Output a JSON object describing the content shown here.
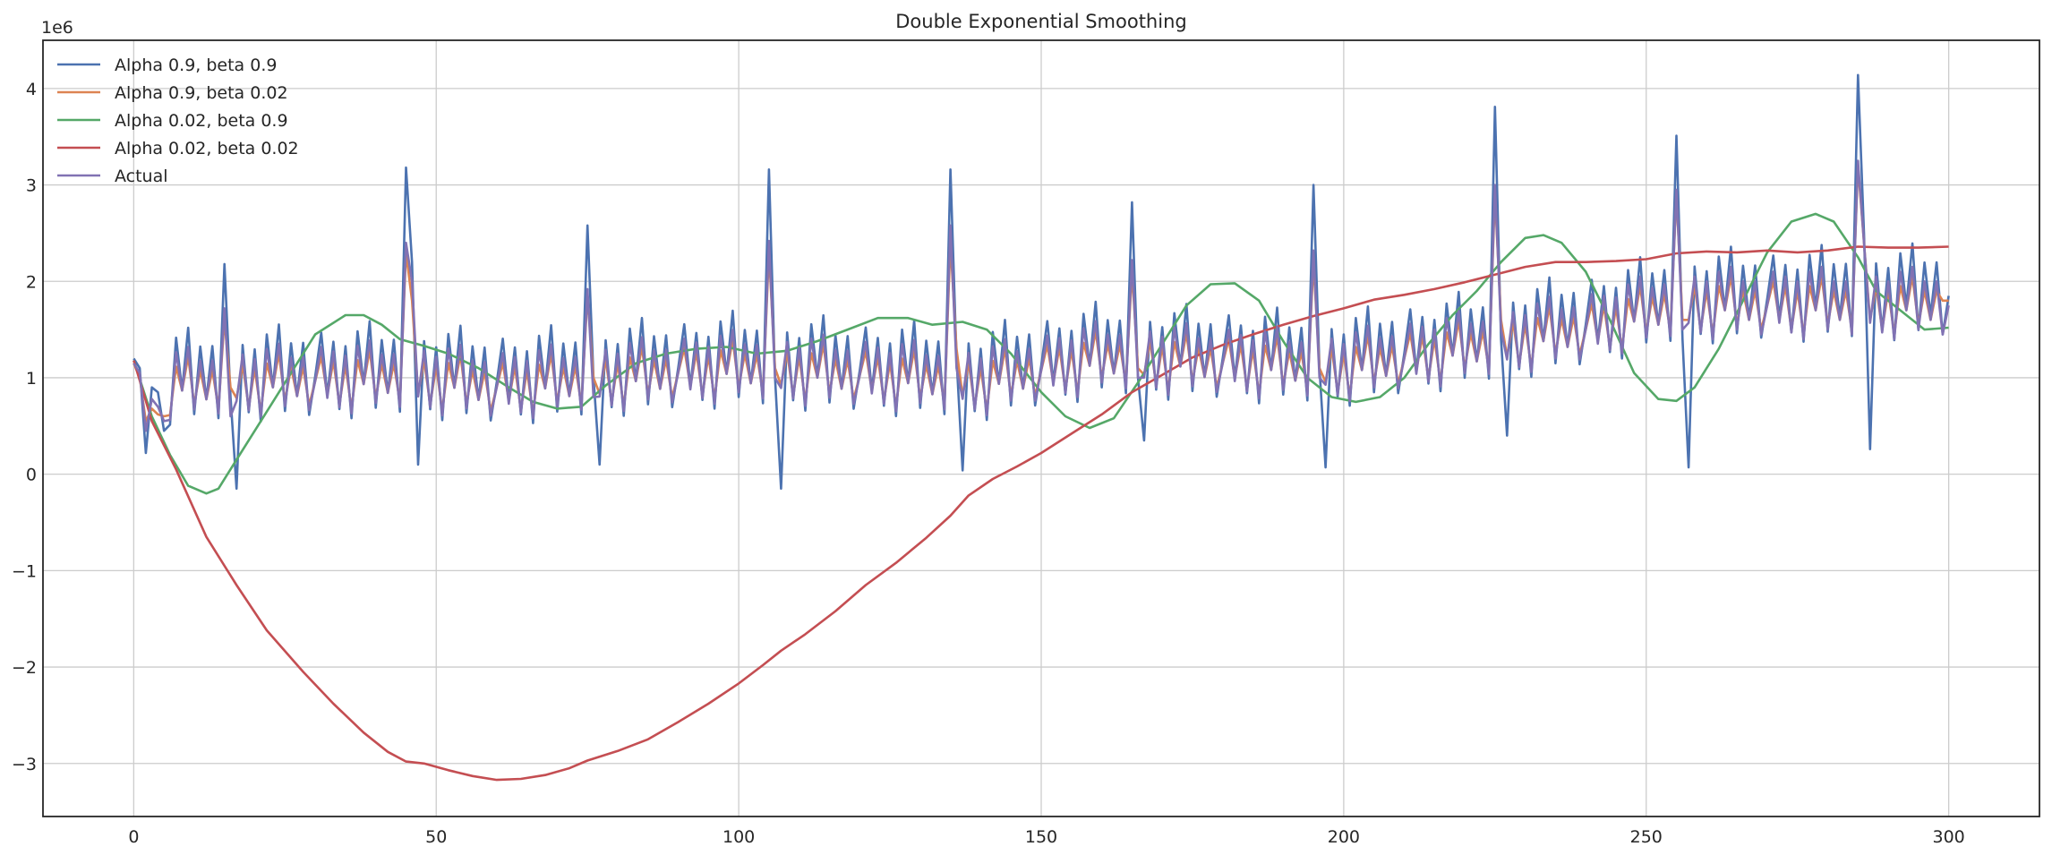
{
  "chart_data": {
    "type": "line",
    "title": "Double Exponential Smoothing",
    "offset_label": "1e6",
    "xlabel": "",
    "ylabel": "",
    "xlim": [
      -15,
      315
    ],
    "ylim": [
      -3550000,
      4500000
    ],
    "xticks": [
      0,
      50,
      100,
      150,
      200,
      250,
      300
    ],
    "xtick_labels": [
      "0",
      "50",
      "100",
      "150",
      "200",
      "250",
      "300"
    ],
    "yticks": [
      -3000000,
      -2000000,
      -1000000,
      0,
      1000000,
      2000000,
      3000000,
      4000000
    ],
    "ytick_labels": [
      "−3",
      "−2",
      "−1",
      "0",
      "1",
      "2",
      "3",
      "4"
    ],
    "grid": true,
    "legend_position": "upper-left",
    "pattern_units": "1e6",
    "series": [
      {
        "name": "Alpha 0.9, beta 0.9",
        "color": "#4c72b0",
        "pattern": [
          0.95,
          1.4,
          0.75,
          1.3,
          0.6,
          1.25,
          0.5,
          1.4,
          0.85,
          1.5,
          0.6,
          1.3,
          0.75,
          1.3,
          0.55
        ],
        "spikes": {
          "15": 2.18,
          "16": 0.8,
          "17": -0.15,
          "45": 3.18,
          "46": 2.2,
          "47": 0.1,
          "75": 2.58,
          "76": 1.0,
          "77": 0.1,
          "105": 3.16,
          "106": 1.0,
          "107": -0.15,
          "135": 3.16,
          "136": 1.2,
          "137": 0.04,
          "165": 2.82,
          "166": 1.0,
          "167": 0.35,
          "195": 3.0,
          "196": 1.1,
          "197": 0.07,
          "225": 3.81,
          "226": 1.4,
          "227": 0.4,
          "255": 3.51,
          "256": 1.4,
          "257": 0.07,
          "285": 4.14,
          "286": 2.5,
          "287": 0.26
        },
        "trend": [
          [
            0,
            0.0
          ],
          [
            45,
            0.1
          ],
          [
            60,
            0.0
          ],
          [
            100,
            0.2
          ],
          [
            140,
            0.05
          ],
          [
            160,
            0.3
          ],
          [
            200,
            0.2
          ],
          [
            240,
            0.6
          ],
          [
            255,
            0.85
          ],
          [
            300,
            0.9
          ]
        ],
        "start": [
          1.2,
          1.1,
          0.22,
          0.9,
          0.85,
          0.45
        ]
      },
      {
        "name": "Alpha 0.9, beta 0.02",
        "color": "#dd8452",
        "pattern": [
          0.9,
          1.15,
          0.75,
          1.1,
          0.65,
          1.05,
          0.6,
          1.1,
          0.85,
          1.2,
          0.7,
          1.05,
          0.75,
          1.05,
          0.65
        ],
        "spikes": {
          "15": 1.6,
          "16": 0.9,
          "45": 2.3,
          "46": 1.8,
          "75": 1.85,
          "76": 1.0,
          "105": 2.3,
          "106": 1.1,
          "135": 2.4,
          "136": 1.3,
          "165": 2.1,
          "166": 1.1,
          "195": 2.2,
          "196": 1.1,
          "225": 2.9,
          "226": 1.6,
          "255": 2.9,
          "256": 1.6,
          "285": 3.2,
          "286": 2.4
        },
        "trend": [
          [
            0,
            0.0
          ],
          [
            45,
            0.1
          ],
          [
            60,
            0.0
          ],
          [
            100,
            0.2
          ],
          [
            140,
            0.05
          ],
          [
            160,
            0.3
          ],
          [
            200,
            0.2
          ],
          [
            240,
            0.6
          ],
          [
            255,
            0.85
          ],
          [
            300,
            0.85
          ]
        ],
        "start": [
          1.15,
          1.0,
          0.55,
          0.68,
          0.62,
          0.6
        ],
        "end": {
          "299": 1.8,
          "300": 1.8
        }
      },
      {
        "name": "Alpha 0.02, beta 0.9",
        "color": "#55a868",
        "points": [
          [
            0,
            1.18
          ],
          [
            3,
            0.6
          ],
          [
            6,
            0.2
          ],
          [
            9,
            -0.12
          ],
          [
            12,
            -0.2
          ],
          [
            14,
            -0.15
          ],
          [
            17,
            0.15
          ],
          [
            21,
            0.55
          ],
          [
            26,
            1.05
          ],
          [
            30,
            1.45
          ],
          [
            35,
            1.65
          ],
          [
            38,
            1.65
          ],
          [
            41,
            1.55
          ],
          [
            44,
            1.4
          ],
          [
            48,
            1.33
          ],
          [
            52,
            1.25
          ],
          [
            57,
            1.1
          ],
          [
            62,
            0.9
          ],
          [
            66,
            0.75
          ],
          [
            70,
            0.68
          ],
          [
            74,
            0.7
          ],
          [
            78,
            0.92
          ],
          [
            83,
            1.15
          ],
          [
            88,
            1.25
          ],
          [
            93,
            1.3
          ],
          [
            98,
            1.32
          ],
          [
            103,
            1.25
          ],
          [
            108,
            1.28
          ],
          [
            113,
            1.38
          ],
          [
            118,
            1.5
          ],
          [
            123,
            1.62
          ],
          [
            128,
            1.62
          ],
          [
            132,
            1.55
          ],
          [
            137,
            1.58
          ],
          [
            141,
            1.5
          ],
          [
            145,
            1.25
          ],
          [
            150,
            0.85
          ],
          [
            154,
            0.6
          ],
          [
            158,
            0.48
          ],
          [
            162,
            0.58
          ],
          [
            166,
            0.95
          ],
          [
            170,
            1.35
          ],
          [
            174,
            1.75
          ],
          [
            178,
            1.97
          ],
          [
            182,
            1.98
          ],
          [
            186,
            1.8
          ],
          [
            190,
            1.38
          ],
          [
            194,
            1.0
          ],
          [
            198,
            0.8
          ],
          [
            202,
            0.75
          ],
          [
            206,
            0.8
          ],
          [
            210,
            1.0
          ],
          [
            214,
            1.35
          ],
          [
            218,
            1.65
          ],
          [
            222,
            1.9
          ],
          [
            226,
            2.2
          ],
          [
            230,
            2.45
          ],
          [
            233,
            2.48
          ],
          [
            236,
            2.4
          ],
          [
            240,
            2.1
          ],
          [
            244,
            1.6
          ],
          [
            248,
            1.05
          ],
          [
            252,
            0.78
          ],
          [
            255,
            0.76
          ],
          [
            258,
            0.9
          ],
          [
            262,
            1.3
          ],
          [
            266,
            1.8
          ],
          [
            270,
            2.3
          ],
          [
            274,
            2.62
          ],
          [
            278,
            2.7
          ],
          [
            281,
            2.62
          ],
          [
            285,
            2.25
          ],
          [
            288,
            1.9
          ],
          [
            292,
            1.7
          ],
          [
            296,
            1.5
          ],
          [
            300,
            1.52
          ]
        ]
      },
      {
        "name": "Alpha 0.02, beta 0.02",
        "color": "#c44e52",
        "points": [
          [
            0,
            1.18
          ],
          [
            3,
            0.55
          ],
          [
            7,
            0.05
          ],
          [
            12,
            -0.65
          ],
          [
            17,
            -1.15
          ],
          [
            22,
            -1.62
          ],
          [
            28,
            -2.05
          ],
          [
            33,
            -2.38
          ],
          [
            38,
            -2.68
          ],
          [
            42,
            -2.88
          ],
          [
            45,
            -2.98
          ],
          [
            48,
            -3.0
          ],
          [
            52,
            -3.07
          ],
          [
            56,
            -3.13
          ],
          [
            60,
            -3.17
          ],
          [
            64,
            -3.16
          ],
          [
            68,
            -3.12
          ],
          [
            72,
            -3.05
          ],
          [
            75,
            -2.97
          ],
          [
            80,
            -2.87
          ],
          [
            85,
            -2.75
          ],
          [
            90,
            -2.57
          ],
          [
            95,
            -2.38
          ],
          [
            100,
            -2.17
          ],
          [
            104,
            -1.98
          ],
          [
            107,
            -1.83
          ],
          [
            111,
            -1.66
          ],
          [
            116,
            -1.42
          ],
          [
            121,
            -1.15
          ],
          [
            126,
            -0.92
          ],
          [
            131,
            -0.66
          ],
          [
            135,
            -0.43
          ],
          [
            138,
            -0.22
          ],
          [
            142,
            -0.05
          ],
          [
            146,
            0.08
          ],
          [
            150,
            0.22
          ],
          [
            155,
            0.42
          ],
          [
            160,
            0.62
          ],
          [
            165,
            0.85
          ],
          [
            170,
            1.03
          ],
          [
            175,
            1.21
          ],
          [
            180,
            1.34
          ],
          [
            185,
            1.45
          ],
          [
            190,
            1.55
          ],
          [
            195,
            1.64
          ],
          [
            200,
            1.72
          ],
          [
            205,
            1.81
          ],
          [
            210,
            1.86
          ],
          [
            215,
            1.92
          ],
          [
            220,
            1.99
          ],
          [
            225,
            2.07
          ],
          [
            230,
            2.15
          ],
          [
            235,
            2.2
          ],
          [
            240,
            2.2
          ],
          [
            245,
            2.21
          ],
          [
            250,
            2.23
          ],
          [
            255,
            2.29
          ],
          [
            260,
            2.31
          ],
          [
            265,
            2.3
          ],
          [
            270,
            2.32
          ],
          [
            275,
            2.3
          ],
          [
            280,
            2.32
          ],
          [
            285,
            2.36
          ],
          [
            290,
            2.35
          ],
          [
            295,
            2.35
          ],
          [
            300,
            2.36
          ]
        ]
      },
      {
        "name": "Actual",
        "color": "#8172b3",
        "pattern": [
          0.9,
          1.25,
          0.72,
          1.2,
          0.62,
          1.15,
          0.55,
          1.25,
          0.85,
          1.3,
          0.65,
          1.15,
          0.75,
          1.15,
          0.6
        ],
        "spikes": {
          "15": 1.72,
          "16": 0.6,
          "45": 2.4,
          "46": 2.0,
          "75": 1.92,
          "76": 0.8,
          "105": 2.42,
          "106": 1.0,
          "135": 2.58,
          "136": 1.1,
          "165": 2.22,
          "166": 1.0,
          "195": 2.32,
          "196": 1.0,
          "225": 3.0,
          "226": 1.5,
          "255": 2.95,
          "256": 1.5,
          "285": 3.25,
          "286": 2.4
        },
        "trend": [
          [
            0,
            0.0
          ],
          [
            45,
            0.1
          ],
          [
            60,
            0.0
          ],
          [
            100,
            0.2
          ],
          [
            140,
            0.05
          ],
          [
            160,
            0.3
          ],
          [
            200,
            0.2
          ],
          [
            240,
            0.6
          ],
          [
            255,
            0.85
          ],
          [
            300,
            0.85
          ]
        ],
        "start": [
          1.15,
          1.05,
          0.45,
          0.78,
          0.7,
          0.55
        ]
      }
    ]
  }
}
